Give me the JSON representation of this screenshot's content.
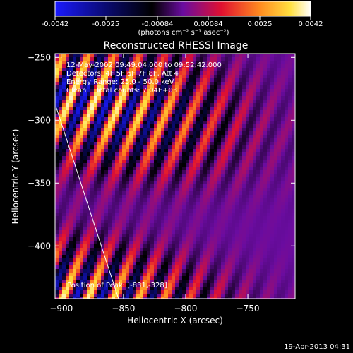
{
  "colorbar": {
    "ticks": [
      "-0.0042",
      "-0.0025",
      "-0.00084",
      "0.00084",
      "0.0025",
      "0.0042"
    ],
    "units": "(photons cm⁻² s⁻¹ asec⁻²)"
  },
  "title": "Reconstructed RHESSI Image",
  "info": {
    "line1": "12-May-2002 09:49:04.000 to 09:52:42.000",
    "line2": "Detectors: 4F 5F 6F 7F 8F, Att 4",
    "line3": "Energy Range: 25.0 - 50.0 keV",
    "line4": "Clean    Total counts: 7.04E+03"
  },
  "peak_label": "Position of Peak: [-831,-328]",
  "footer_date": "19-Apr-2013 04:31",
  "chart_data": {
    "type": "heatmap",
    "title": "Reconstructed RHESSI Image",
    "xlabel": "Heliocentric X (arcsec)",
    "ylabel": "Heliocentric Y (arcsec)",
    "xlim": [
      -905,
      -712
    ],
    "ylim": [
      -442,
      -247
    ],
    "xticks": [
      {
        "value": -900,
        "label": "−900"
      },
      {
        "value": -850,
        "label": "−850"
      },
      {
        "value": -800,
        "label": "−800"
      },
      {
        "value": -750,
        "label": "−750"
      }
    ],
    "yticks": [
      {
        "value": -250,
        "label": "−250"
      },
      {
        "value": -300,
        "label": "−300"
      },
      {
        "value": -350,
        "label": "−350"
      },
      {
        "value": -400,
        "label": "−400"
      }
    ],
    "color_range": [
      -0.0042,
      0.0042
    ],
    "colormap": [
      "#1010ff",
      "#000000",
      "#6a0ca0",
      "#ff2020",
      "#ffd040",
      "#ffffff"
    ],
    "limb_line": [
      [
        -904,
        -290
      ],
      [
        -854,
        -442
      ]
    ],
    "peak_position": [
      -831,
      -328
    ],
    "grid": false,
    "legend": "none"
  }
}
